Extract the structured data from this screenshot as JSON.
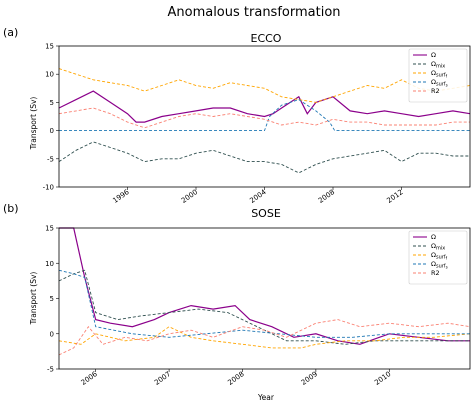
{
  "figure": {
    "title": "Anomalous transformation",
    "colors": {
      "omega": "#8B008B",
      "omega_mix": "#2F4F4F",
      "omega_surf_f": "#FFA500",
      "omega_surf_s": "#1F77B4",
      "r2": "#FA8072"
    }
  },
  "chart_data": [
    {
      "panel_label": "(a)",
      "type": "line",
      "title": "ECCO",
      "xlabel": "",
      "ylabel": "Transport (Sv)",
      "xlim": [
        1992.0,
        2016.0
      ],
      "ylim": [
        -10,
        15
      ],
      "xticks": [
        1996,
        2000,
        2004,
        2008,
        2012
      ],
      "yticks": [
        -10,
        -5,
        0,
        5,
        10,
        15
      ],
      "legend_position": "top-right",
      "series": [
        {
          "name": "Ω",
          "color": "#8B008B",
          "dash": "solid",
          "x": [
            1992,
            1993,
            1994,
            1995,
            1996,
            1996.5,
            1997,
            1998,
            1999,
            2000,
            2001,
            2002,
            2003,
            2004,
            2004.5,
            2005,
            2005.5,
            2006,
            2006.5,
            2007,
            2008,
            2009,
            2010,
            2011,
            2012,
            2013,
            2014,
            2015,
            2016
          ],
          "y": [
            4,
            5.5,
            7,
            5,
            3,
            1.5,
            1.5,
            2.5,
            3,
            3.5,
            4,
            4,
            3,
            2.5,
            3,
            4,
            5,
            6,
            3,
            5,
            6,
            3.5,
            3,
            3.5,
            3,
            2.5,
            3,
            3.5,
            3
          ]
        },
        {
          "name": "Ωmix",
          "color": "#2F4F4F",
          "dash": "dashed",
          "x": [
            1992,
            1993,
            1994,
            1995,
            1996,
            1997,
            1998,
            1999,
            2000,
            2001,
            2002,
            2003,
            2004,
            2005,
            2006,
            2007,
            2008,
            2009,
            2010,
            2011,
            2012,
            2013,
            2014,
            2015,
            2016
          ],
          "y": [
            -5.5,
            -3.5,
            -2,
            -3,
            -4,
            -5.5,
            -5,
            -5,
            -4,
            -3.5,
            -4.5,
            -5.5,
            -5.5,
            -6,
            -7.5,
            -6,
            -5,
            -4.5,
            -4,
            -3.5,
            -5.5,
            -4,
            -4,
            -4.5,
            -4.5
          ]
        },
        {
          "name": "Ωsurf_f",
          "color": "#FFA500",
          "dash": "dashed",
          "x": [
            1992,
            1993,
            1994,
            1995,
            1996,
            1997,
            1998,
            1999,
            2000,
            2001,
            2002,
            2003,
            2004,
            2005,
            2006,
            2007,
            2008,
            2009,
            2010,
            2011,
            2012,
            2013,
            2014,
            2015,
            2016
          ],
          "y": [
            11,
            10,
            9,
            8.5,
            8,
            7,
            8,
            9,
            8,
            7.5,
            8.5,
            8,
            7.5,
            6,
            5.5,
            5,
            6,
            7,
            8,
            7.5,
            9,
            7.5,
            7,
            7.5,
            8
          ]
        },
        {
          "name": "Ωsurf_s",
          "color": "#1F77B4",
          "dash": "dashed",
          "x": [
            1992,
            1994,
            1996,
            1998,
            2000,
            2002,
            2004,
            2004.3,
            2005,
            2006,
            2007,
            2007.8,
            2008.1,
            2010,
            2012,
            2014,
            2016
          ],
          "y": [
            0,
            0,
            0,
            0,
            0,
            0,
            0,
            2.5,
            4.5,
            5.5,
            3.5,
            1.5,
            0,
            0,
            0,
            0,
            0
          ]
        },
        {
          "name": "R2",
          "color": "#FA8072",
          "dash": "dashed",
          "x": [
            1992,
            1993,
            1994,
            1995,
            1996,
            1997,
            1998,
            1999,
            2000,
            2001,
            2002,
            2003,
            2004,
            2005,
            2006,
            2007,
            2008,
            2009,
            2010,
            2011,
            2012,
            2013,
            2014,
            2015,
            2016
          ],
          "y": [
            3,
            3.5,
            4,
            3,
            1.5,
            0.5,
            1.5,
            2.5,
            3,
            2.5,
            3,
            2.5,
            2,
            1,
            1.5,
            1,
            2,
            1.5,
            1.5,
            1,
            1,
            1,
            1,
            1.5,
            1.5
          ]
        }
      ]
    },
    {
      "panel_label": "(b)",
      "type": "line",
      "title": "SOSE",
      "xlabel": "Year",
      "ylabel": "Transport (Sv)",
      "xlim": [
        2005.5,
        2011.1
      ],
      "ylim": [
        -5,
        15
      ],
      "xticks": [
        2006,
        2007,
        2008,
        2009,
        2010
      ],
      "yticks": [
        -5,
        0,
        5,
        10,
        15
      ],
      "legend_position": "top-right",
      "series": [
        {
          "name": "Ω",
          "color": "#8B008B",
          "dash": "solid",
          "x": [
            2005.5,
            2005.7,
            2005.85,
            2006.0,
            2006.2,
            2006.5,
            2006.8,
            2007.0,
            2007.3,
            2007.6,
            2007.9,
            2008.1,
            2008.4,
            2008.7,
            2009.0,
            2009.3,
            2009.6,
            2010.0,
            2010.4,
            2010.8,
            2011.1
          ],
          "y": [
            19,
            15,
            8,
            2,
            1.5,
            1,
            2,
            3,
            4,
            3.5,
            4,
            2,
            1,
            -0.5,
            0,
            -1,
            -1.5,
            0,
            -0.5,
            -1,
            -1
          ]
        },
        {
          "name": "Ωmix",
          "color": "#2F4F4F",
          "dash": "dashed",
          "x": [
            2005.5,
            2005.7,
            2005.85,
            2006.0,
            2006.3,
            2006.6,
            2007.0,
            2007.4,
            2007.8,
            2008.2,
            2008.6,
            2009.0,
            2009.4,
            2009.8,
            2010.2,
            2010.6,
            2011.1
          ],
          "y": [
            7.5,
            8.5,
            9,
            3,
            2,
            2.5,
            3,
            3.5,
            3,
            1,
            -1,
            -1,
            -1.5,
            -1,
            -1,
            -1,
            -1
          ]
        },
        {
          "name": "Ωsurf_f",
          "color": "#FFA500",
          "dash": "dashed",
          "x": [
            2005.5,
            2005.8,
            2006.0,
            2006.4,
            2006.8,
            2007.0,
            2007.3,
            2007.6,
            2008.0,
            2008.4,
            2008.8,
            2009.0,
            2009.4,
            2009.8,
            2010.2,
            2010.6,
            2011.1
          ],
          "y": [
            -1,
            -1.5,
            0,
            -1,
            -0.5,
            1,
            -0.5,
            -1,
            -1.5,
            -2,
            -2,
            -1.5,
            -1,
            -1,
            -0.5,
            -0.5,
            0
          ]
        },
        {
          "name": "Ωsurf_s",
          "color": "#1F77B4",
          "dash": "dashed",
          "x": [
            2005.5,
            2005.7,
            2005.85,
            2006.0,
            2006.5,
            2007.0,
            2007.5,
            2008.0,
            2008.5,
            2009.0,
            2009.5,
            2010.0,
            2010.5,
            2011.1
          ],
          "y": [
            9,
            8.5,
            8,
            1,
            0,
            -0.5,
            0,
            0.5,
            0,
            -0.5,
            -0.5,
            0,
            0,
            0
          ]
        },
        {
          "name": "R2",
          "color": "#FA8072",
          "dash": "dashed",
          "x": [
            2005.5,
            2005.7,
            2005.9,
            2006.1,
            2006.4,
            2006.7,
            2007.0,
            2007.3,
            2007.6,
            2008.0,
            2008.3,
            2008.6,
            2009.0,
            2009.3,
            2009.6,
            2010.0,
            2010.4,
            2010.8,
            2011.1
          ],
          "y": [
            -3,
            -2,
            1,
            -1.5,
            -0.5,
            -1,
            0,
            0.5,
            -0.5,
            1,
            0.5,
            -0.5,
            1.5,
            2,
            1,
            1.5,
            1,
            1.5,
            1
          ]
        }
      ]
    }
  ]
}
